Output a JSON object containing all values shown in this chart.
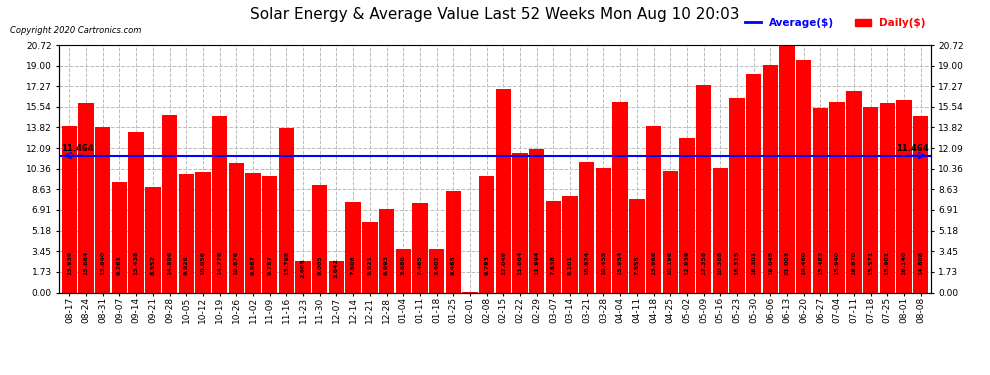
{
  "title": "Solar Energy & Average Value Last 52 Weeks Mon Aug 10 20:03",
  "copyright": "Copyright 2020 Cartronics.com",
  "legend_avg": "Average($)",
  "legend_daily": "Daily($)",
  "average_line": 11.464,
  "bar_color": "#FF0000",
  "average_line_color": "#0000FF",
  "background_color": "#FFFFFF",
  "plot_bg_color": "#FFFFFF",
  "yticks": [
    0.0,
    1.73,
    3.45,
    5.18,
    6.91,
    8.63,
    10.36,
    12.09,
    13.82,
    15.54,
    17.27,
    19.0,
    20.72
  ],
  "categories": [
    "08-17",
    "08-24",
    "08-31",
    "09-07",
    "09-14",
    "09-21",
    "09-28",
    "10-05",
    "10-12",
    "10-19",
    "10-26",
    "11-02",
    "11-09",
    "11-16",
    "11-23",
    "11-30",
    "12-07",
    "12-14",
    "12-21",
    "12-28",
    "01-04",
    "01-11",
    "01-18",
    "01-25",
    "02-01",
    "02-08",
    "02-15",
    "02-22",
    "02-29",
    "03-07",
    "03-14",
    "03-21",
    "03-28",
    "04-04",
    "04-11",
    "04-18",
    "04-25",
    "05-02",
    "05-09",
    "05-16",
    "05-23",
    "05-30",
    "06-06",
    "06-13",
    "06-20",
    "06-27",
    "07-04",
    "07-11",
    "07-18",
    "07-25",
    "08-01",
    "08-08"
  ],
  "values": [
    13.939,
    15.884,
    13.84,
    9.261,
    13.438,
    8.852,
    14.896,
    9.926,
    10.056,
    14.776,
    10.876,
    9.987,
    9.787,
    13.768,
    2.608,
    9.005,
    2.642,
    7.606,
    5.921,
    6.993,
    3.68,
    7.465,
    3.602,
    8.465,
    0.008,
    9.793,
    17.049,
    11.664,
    11.994,
    7.638,
    8.101,
    10.924,
    10.455,
    15.954,
    7.855,
    13.966,
    10.196,
    12.939,
    17.358,
    10.388,
    16.315,
    18.301,
    19.045,
    21.003,
    19.46,
    15.483,
    15.94,
    16.87,
    15.571,
    15.901,
    16.14,
    14.808
  ],
  "value_fontsize": 4.5,
  "axis_fontsize": 6.5,
  "title_fontsize": 11.0,
  "grid_color": "#BBBBBB",
  "avg_label": "11.464"
}
